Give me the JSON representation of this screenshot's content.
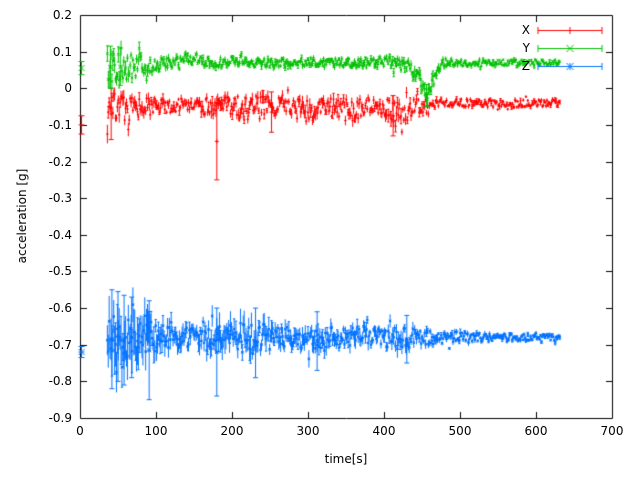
{
  "chart_data": {
    "type": "line",
    "style": "points with errorbars",
    "title": "",
    "xlabel": "time[s]",
    "ylabel": "acceleration [g]",
    "xlim": [
      0,
      700
    ],
    "ylim": [
      -0.9,
      0.2
    ],
    "xticks": [
      0,
      100,
      200,
      300,
      400,
      500,
      600,
      700
    ],
    "yticks": [
      -0.9,
      -0.8,
      -0.7,
      -0.6,
      -0.5,
      -0.4,
      -0.3,
      -0.2,
      -0.1,
      0,
      0.1,
      0.2
    ],
    "grid": false,
    "legend": {
      "position": "top-right"
    },
    "sample_step": 1.2,
    "seed": 7,
    "series": [
      {
        "name": "X",
        "color": "#ff0000",
        "marker": "+",
        "t_start": 36,
        "t_end": 632,
        "start_point": {
          "t": 2,
          "v": -0.1,
          "err": 0.025
        },
        "anchors": [
          [
            35,
            -0.06,
            0.04,
            0.02
          ],
          [
            50,
            -0.045,
            0.035,
            0.018
          ],
          [
            62,
            -0.06,
            0.03,
            0.015
          ],
          [
            75,
            -0.05,
            0.028,
            0.014
          ],
          [
            90,
            -0.055,
            0.028,
            0.014
          ],
          [
            105,
            -0.05,
            0.022,
            0.012
          ],
          [
            125,
            -0.045,
            0.02,
            0.01
          ],
          [
            145,
            -0.04,
            0.02,
            0.01
          ],
          [
            160,
            -0.05,
            0.025,
            0.012
          ],
          [
            175,
            -0.055,
            0.03,
            0.016
          ],
          [
            190,
            -0.05,
            0.028,
            0.014
          ],
          [
            205,
            -0.05,
            0.03,
            0.015
          ],
          [
            220,
            -0.06,
            0.035,
            0.016
          ],
          [
            235,
            -0.055,
            0.035,
            0.016
          ],
          [
            250,
            -0.05,
            0.03,
            0.014
          ],
          [
            265,
            -0.045,
            0.022,
            0.011
          ],
          [
            280,
            -0.05,
            0.025,
            0.012
          ],
          [
            295,
            -0.065,
            0.03,
            0.014
          ],
          [
            308,
            -0.06,
            0.032,
            0.015
          ],
          [
            320,
            -0.05,
            0.026,
            0.012
          ],
          [
            335,
            -0.055,
            0.03,
            0.013
          ],
          [
            350,
            -0.05,
            0.026,
            0.012
          ],
          [
            362,
            -0.065,
            0.03,
            0.014
          ],
          [
            375,
            -0.05,
            0.026,
            0.012
          ],
          [
            388,
            -0.04,
            0.02,
            0.01
          ],
          [
            402,
            -0.055,
            0.032,
            0.016
          ],
          [
            415,
            -0.075,
            0.035,
            0.018
          ],
          [
            428,
            -0.06,
            0.03,
            0.015
          ],
          [
            442,
            -0.045,
            0.02,
            0.01
          ],
          [
            458,
            -0.05,
            0.018,
            0.009
          ],
          [
            470,
            -0.04,
            0.012,
            0.007
          ],
          [
            500,
            -0.04,
            0.01,
            0.006
          ],
          [
            540,
            -0.041,
            0.01,
            0.006
          ],
          [
            580,
            -0.042,
            0.01,
            0.006
          ],
          [
            635,
            -0.04,
            0.01,
            0.006
          ]
        ],
        "outliers": [
          [
            41,
            -0.14,
            0.0
          ],
          [
            180,
            -0.25,
            -0.04
          ],
          [
            252,
            -0.12,
            -0.01
          ],
          [
            412,
            -0.13,
            -0.02
          ]
        ]
      },
      {
        "name": "Y",
        "color": "#00c000",
        "marker": "x",
        "t_start": 36,
        "t_end": 632,
        "start_point": {
          "t": 2,
          "v": 0.055,
          "err": 0.018
        },
        "anchors": [
          [
            35,
            0.06,
            0.038,
            0.02
          ],
          [
            48,
            0.055,
            0.04,
            0.02
          ],
          [
            60,
            0.06,
            0.035,
            0.018
          ],
          [
            72,
            0.058,
            0.03,
            0.015
          ],
          [
            85,
            0.065,
            0.025,
            0.013
          ],
          [
            98,
            0.06,
            0.02,
            0.011
          ],
          [
            112,
            0.065,
            0.018,
            0.01
          ],
          [
            126,
            0.075,
            0.015,
            0.009
          ],
          [
            140,
            0.082,
            0.014,
            0.008
          ],
          [
            155,
            0.08,
            0.014,
            0.008
          ],
          [
            170,
            0.07,
            0.012,
            0.008
          ],
          [
            188,
            0.07,
            0.012,
            0.008
          ],
          [
            202,
            0.074,
            0.013,
            0.008
          ],
          [
            212,
            0.08,
            0.014,
            0.008
          ],
          [
            226,
            0.07,
            0.012,
            0.008
          ],
          [
            252,
            0.068,
            0.012,
            0.008
          ],
          [
            278,
            0.07,
            0.012,
            0.008
          ],
          [
            304,
            0.072,
            0.012,
            0.008
          ],
          [
            330,
            0.07,
            0.012,
            0.008
          ],
          [
            356,
            0.068,
            0.012,
            0.008
          ],
          [
            382,
            0.07,
            0.012,
            0.008
          ],
          [
            405,
            0.072,
            0.014,
            0.009
          ],
          [
            420,
            0.065,
            0.015,
            0.01
          ],
          [
            433,
            0.058,
            0.016,
            0.011
          ],
          [
            443,
            0.038,
            0.02,
            0.014
          ],
          [
            451,
            0.005,
            0.02,
            0.018
          ],
          [
            458,
            -0.018,
            0.015,
            0.014
          ],
          [
            466,
            0.028,
            0.02,
            0.014
          ],
          [
            473,
            0.062,
            0.014,
            0.01
          ],
          [
            482,
            0.07,
            0.01,
            0.007
          ],
          [
            520,
            0.068,
            0.009,
            0.006
          ],
          [
            560,
            0.07,
            0.008,
            0.005
          ],
          [
            600,
            0.07,
            0.008,
            0.005
          ],
          [
            635,
            0.07,
            0.008,
            0.005
          ]
        ],
        "outliers": [
          [
            40,
            0.0,
            0.115
          ],
          [
            53,
            0.008,
            0.11
          ],
          [
            456,
            -0.05,
            0.01
          ]
        ]
      },
      {
        "name": "Z",
        "color": "#0072ff",
        "marker": "*",
        "t_start": 36,
        "t_end": 632,
        "start_point": {
          "t": 2,
          "v": -0.72,
          "err": 0.015
        },
        "anchors": [
          [
            35,
            -0.68,
            0.055,
            0.055
          ],
          [
            45,
            -0.68,
            0.06,
            0.06
          ],
          [
            55,
            -0.68,
            0.058,
            0.055
          ],
          [
            68,
            -0.68,
            0.05,
            0.05
          ],
          [
            80,
            -0.69,
            0.05,
            0.05
          ],
          [
            92,
            -0.68,
            0.048,
            0.045
          ],
          [
            105,
            -0.675,
            0.032,
            0.028
          ],
          [
            120,
            -0.68,
            0.03,
            0.022
          ],
          [
            135,
            -0.68,
            0.03,
            0.022
          ],
          [
            150,
            -0.675,
            0.028,
            0.02
          ],
          [
            165,
            -0.68,
            0.03,
            0.024
          ],
          [
            178,
            -0.685,
            0.035,
            0.03
          ],
          [
            192,
            -0.68,
            0.036,
            0.03
          ],
          [
            208,
            -0.68,
            0.04,
            0.032
          ],
          [
            224,
            -0.685,
            0.04,
            0.03
          ],
          [
            240,
            -0.68,
            0.038,
            0.028
          ],
          [
            256,
            -0.68,
            0.035,
            0.025
          ],
          [
            272,
            -0.675,
            0.03,
            0.022
          ],
          [
            288,
            -0.68,
            0.03,
            0.02
          ],
          [
            304,
            -0.68,
            0.032,
            0.022
          ],
          [
            316,
            -0.69,
            0.034,
            0.024
          ],
          [
            330,
            -0.68,
            0.03,
            0.02
          ],
          [
            346,
            -0.68,
            0.028,
            0.018
          ],
          [
            362,
            -0.68,
            0.028,
            0.018
          ],
          [
            378,
            -0.675,
            0.026,
            0.016
          ],
          [
            394,
            -0.68,
            0.025,
            0.016
          ],
          [
            410,
            -0.68,
            0.028,
            0.018
          ],
          [
            424,
            -0.685,
            0.03,
            0.02
          ],
          [
            438,
            -0.68,
            0.025,
            0.015
          ],
          [
            452,
            -0.68,
            0.02,
            0.012
          ],
          [
            470,
            -0.68,
            0.018,
            0.01
          ],
          [
            500,
            -0.678,
            0.015,
            0.008
          ],
          [
            530,
            -0.68,
            0.012,
            0.007
          ],
          [
            565,
            -0.68,
            0.01,
            0.006
          ],
          [
            600,
            -0.68,
            0.009,
            0.005
          ],
          [
            635,
            -0.68,
            0.008,
            0.005
          ]
        ],
        "outliers": [
          [
            42,
            -0.82,
            -0.55
          ],
          [
            50,
            -0.8,
            -0.555
          ],
          [
            58,
            -0.81,
            -0.565
          ],
          [
            68,
            -0.79,
            -0.57
          ],
          [
            91,
            -0.85,
            -0.58
          ],
          [
            180,
            -0.84,
            -0.6
          ],
          [
            231,
            -0.79,
            -0.6
          ],
          [
            312,
            -0.77,
            -0.61
          ],
          [
            430,
            -0.75,
            -0.62
          ]
        ]
      }
    ]
  }
}
